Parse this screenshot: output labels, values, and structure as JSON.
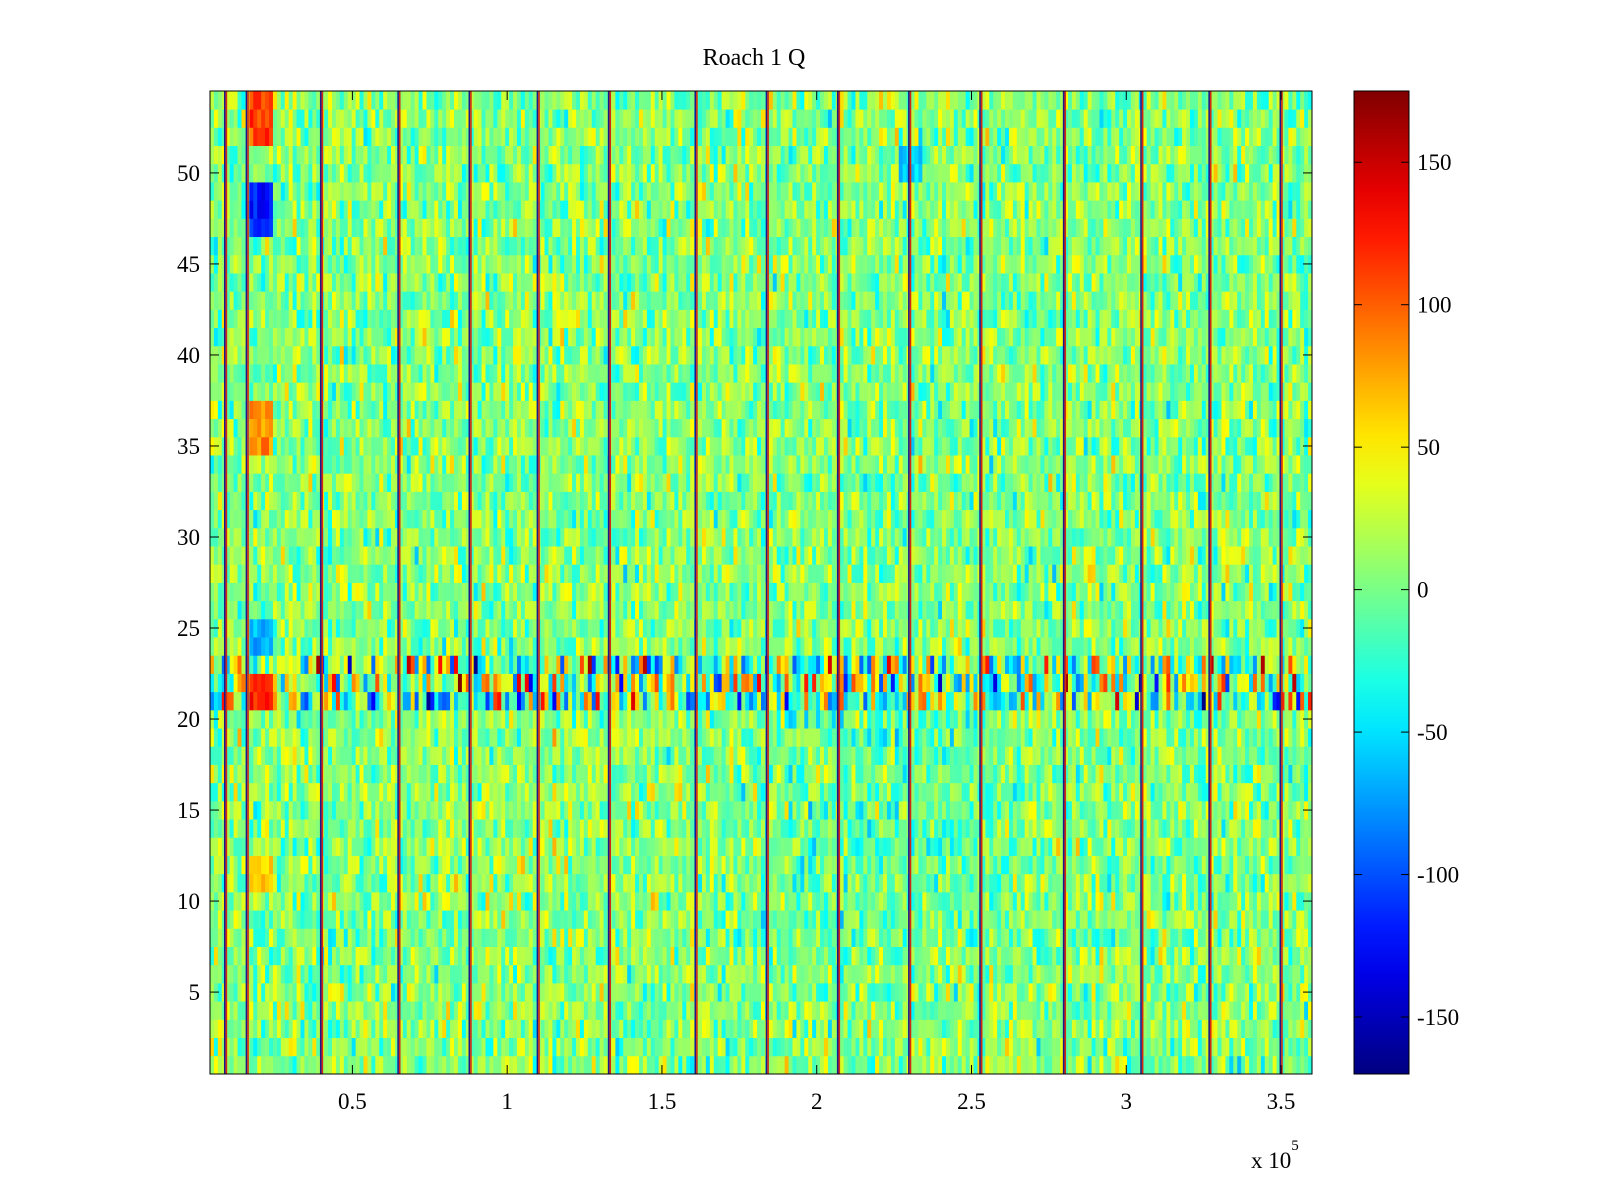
{
  "chart_data": {
    "type": "heatmap",
    "title": "Roach 1 Q",
    "xlabel": "",
    "ylabel": "",
    "x_exponent_label": "x 10",
    "x_exponent_power": "5",
    "xlim": [
      0.04,
      3.6
    ],
    "ylim": [
      0.5,
      54.5
    ],
    "x_ticks": [
      0.5,
      1,
      1.5,
      2,
      2.5,
      3,
      3.5
    ],
    "x_tick_labels": [
      "0.5",
      "1",
      "1.5",
      "2",
      "2.5",
      "3",
      "3.5"
    ],
    "y_ticks": [
      5,
      10,
      15,
      20,
      25,
      30,
      35,
      40,
      45,
      50
    ],
    "y_tick_labels": [
      "5",
      "10",
      "15",
      "20",
      "25",
      "30",
      "35",
      "40",
      "45",
      "50"
    ],
    "rows": 54,
    "colormap": "jet",
    "colorbar": {
      "clim": [
        -170,
        175
      ],
      "ticks": [
        -150,
        -100,
        -50,
        0,
        50,
        100,
        150
      ],
      "tick_labels": [
        "-150",
        "-100",
        "-50",
        "0",
        "50",
        "100",
        "150"
      ]
    },
    "typical_value_range": [
      -40,
      40
    ],
    "background_value": 5,
    "noisy_rows": [
      21,
      22,
      23
    ],
    "stripe_x": [
      0.09,
      0.16,
      0.4,
      0.65,
      0.88,
      1.1,
      1.33,
      1.61,
      1.84,
      2.07,
      2.3,
      2.53,
      2.8,
      3.05,
      3.27,
      3.5
    ],
    "hot_spots": [
      {
        "x": 0.2,
        "y_from": 52,
        "y_to": 54,
        "value": 110
      },
      {
        "x": 0.2,
        "y_from": 35,
        "y_to": 37,
        "value": 80
      },
      {
        "x": 0.2,
        "y_from": 21,
        "y_to": 22,
        "value": 120
      },
      {
        "x": 0.2,
        "y_from": 11,
        "y_to": 12,
        "value": 60
      }
    ],
    "cold_spots": [
      {
        "x": 0.2,
        "y_from": 47,
        "y_to": 49,
        "value": -120
      },
      {
        "x": 0.2,
        "y_from": 24,
        "y_to": 25,
        "value": -70
      },
      {
        "x": 2.3,
        "y_from": 50,
        "y_to": 51,
        "value": -60
      }
    ],
    "grid": false
  }
}
